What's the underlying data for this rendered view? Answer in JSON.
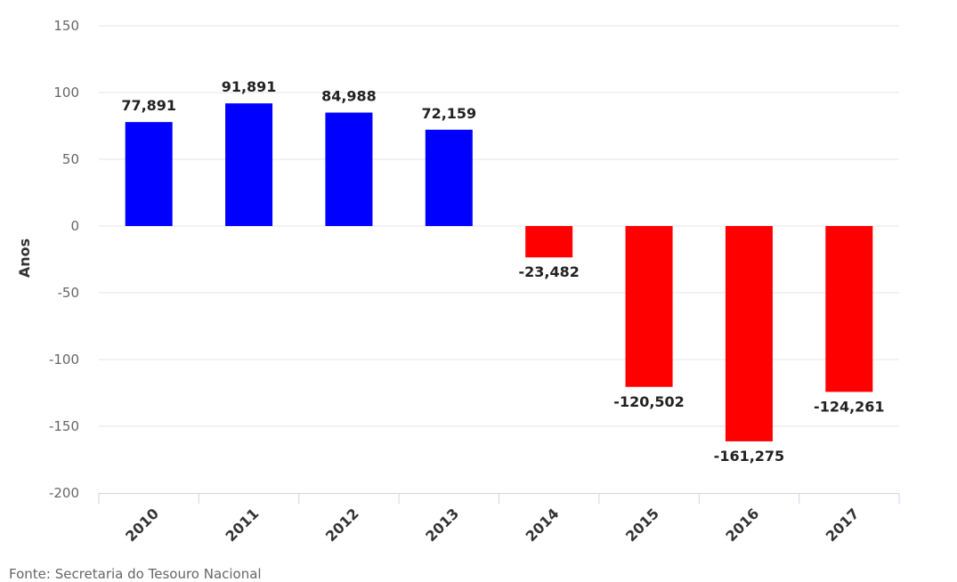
{
  "chart_data": {
    "type": "bar",
    "categories": [
      "2010",
      "2011",
      "2012",
      "2013",
      "2014",
      "2015",
      "2016",
      "2017"
    ],
    "values": [
      77.891,
      91.891,
      84.988,
      72.159,
      -23.482,
      -120.502,
      -161.275,
      -124.261
    ],
    "data_labels": [
      "77,891",
      "91,891",
      "84,988",
      "72,159",
      "-23,482",
      "-120,502",
      "-161,275",
      "-124,261"
    ],
    "title": "",
    "xlabel": "",
    "ylabel": "Anos",
    "ylim": [
      -200,
      150
    ],
    "yticks": [
      150,
      100,
      50,
      0,
      -50,
      -100,
      -150,
      -200
    ],
    "grid": true,
    "legend": "none",
    "positive_color": "#0000ff",
    "negative_color": "#ff0000"
  },
  "source_note": "Fonte: Secretaria do Tesouro Nacional"
}
